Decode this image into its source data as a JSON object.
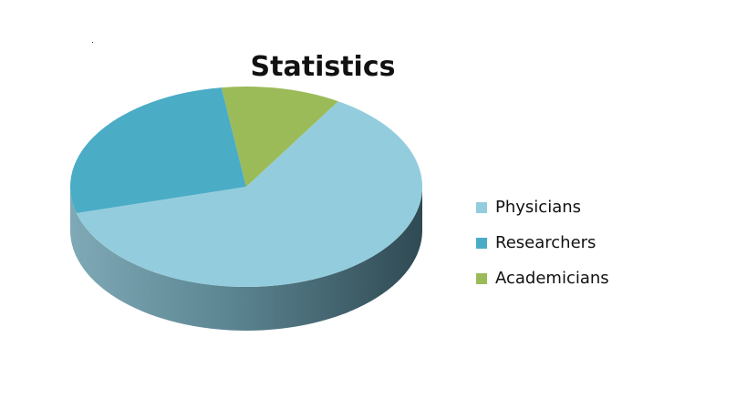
{
  "chart_data": {
    "type": "pie",
    "title": "Statistics",
    "categories": [
      "Physicians",
      "Researchers",
      "Academicians"
    ],
    "values": [
      62,
      27,
      11
    ],
    "colors": [
      "#93CDDD",
      "#4BACC6",
      "#9BBB59"
    ],
    "legend_position": "right"
  }
}
